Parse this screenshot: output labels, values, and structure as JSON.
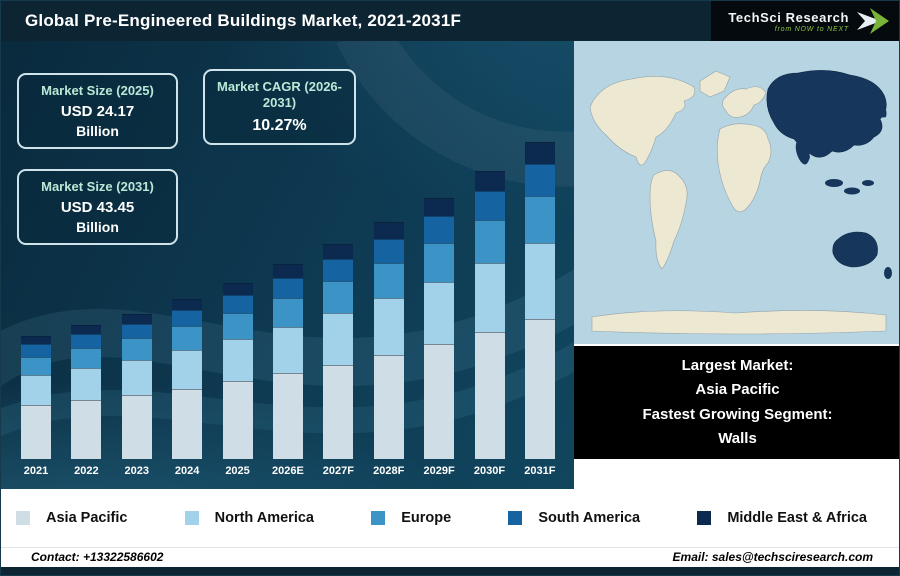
{
  "header": {
    "title": "Global Pre-Engineered Buildings Market, 2021-2031F",
    "logo_name": "TechSci Research",
    "logo_tagline": "from NOW to NEXT"
  },
  "info_boxes": [
    {
      "label": "Market Size (2025)",
      "value": "USD 24.17",
      "unit": "Billion"
    },
    {
      "label": "Market CAGR (2026-2031)",
      "value": "10.27%",
      "unit": ""
    },
    {
      "label": "Market Size (2031)",
      "value": "USD 43.45",
      "unit": "Billion"
    }
  ],
  "chart_data": {
    "type": "bar",
    "stacked": true,
    "title": "Global Pre-Engineered Buildings Market, 2021-2031F",
    "xlabel": "",
    "ylabel": "USD Billion",
    "ylim": [
      0,
      45
    ],
    "grid": false,
    "legend_position": "bottom",
    "categories": [
      "2021",
      "2022",
      "2023",
      "2024",
      "2025",
      "2026E",
      "2027F",
      "2028F",
      "2029F",
      "2030F",
      "2031F"
    ],
    "totals": [
      16.9,
      18.4,
      19.9,
      21.9,
      24.17,
      26.65,
      29.39,
      32.41,
      35.74,
      39.41,
      43.45
    ],
    "series": [
      {
        "name": "Asia Pacific",
        "color": "#cfdde6",
        "values": [
          7.44,
          8.1,
          8.76,
          9.64,
          10.63,
          11.73,
          12.93,
          14.26,
          15.73,
          17.34,
          19.12
        ]
      },
      {
        "name": "North America",
        "color": "#a2d2ea",
        "values": [
          4.06,
          4.42,
          4.78,
          5.26,
          5.8,
          6.4,
          7.05,
          7.78,
          8.58,
          9.46,
          10.43
        ]
      },
      {
        "name": "Europe",
        "color": "#3c93c6",
        "values": [
          2.54,
          2.76,
          2.99,
          3.29,
          3.63,
          4.0,
          4.41,
          4.86,
          5.36,
          5.91,
          6.52
        ]
      },
      {
        "name": "South America",
        "color": "#1663a2",
        "values": [
          1.69,
          1.84,
          1.99,
          2.19,
          2.42,
          2.67,
          2.94,
          3.24,
          3.57,
          3.94,
          4.35
        ]
      },
      {
        "name": "Middle East & Africa",
        "color": "#0c2950",
        "values": [
          1.18,
          1.29,
          1.39,
          1.53,
          1.69,
          1.87,
          2.06,
          2.27,
          2.5,
          2.76,
          3.04
        ]
      }
    ]
  },
  "map_panel": {
    "ocean_color": "#b7d4e3",
    "land_color": "#ece8d2",
    "highlight_color": "#16365c",
    "highlight_region": "Asia Pacific"
  },
  "black_box": {
    "line1": "Largest Market:",
    "line2": "Asia Pacific",
    "line3": "Fastest Growing Segment:",
    "line4": "Walls"
  },
  "footer": {
    "contact": "Contact: +13322586602",
    "email": "Email: sales@techsciresearch.com"
  }
}
